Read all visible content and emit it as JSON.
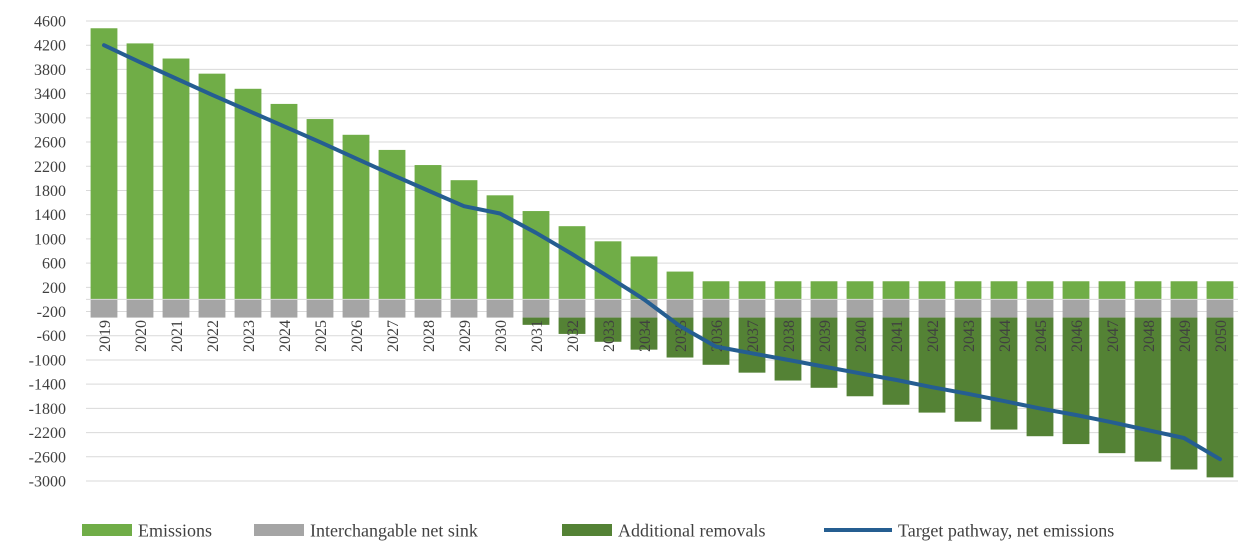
{
  "chart_data": {
    "type": "bar",
    "stacked": true,
    "categories": [
      "2019",
      "2020",
      "2021",
      "2022",
      "2023",
      "2024",
      "2025",
      "2026",
      "2027",
      "2028",
      "2029",
      "2030",
      "2031",
      "2032",
      "2033",
      "2034",
      "2035",
      "2036",
      "2037",
      "2038",
      "2039",
      "2040",
      "2041",
      "2042",
      "2043",
      "2044",
      "2045",
      "2046",
      "2047",
      "2048",
      "2049",
      "2050"
    ],
    "ylim": [
      -3000,
      4600
    ],
    "ytick_step": 400,
    "yticks": [
      "4600",
      "4200",
      "3800",
      "3400",
      "3000",
      "2600",
      "2200",
      "1800",
      "1400",
      "1000",
      "600",
      "200",
      "-200",
      "-600",
      "-1000",
      "-1400",
      "-1800",
      "-2200",
      "-2600",
      "-3000"
    ],
    "grid": true,
    "legend_position": "bottom",
    "series": [
      {
        "name": "Emissions",
        "kind": "bar",
        "color": "#70AD47",
        "values": [
          4480,
          4230,
          3980,
          3730,
          3480,
          3230,
          2980,
          2720,
          2470,
          2220,
          1970,
          1720,
          1460,
          1210,
          960,
          710,
          460,
          300,
          300,
          300,
          300,
          300,
          300,
          300,
          300,
          300,
          300,
          300,
          300,
          300,
          300,
          300
        ]
      },
      {
        "name": "Interchangable net sink",
        "kind": "bar",
        "color": "#A5A5A5",
        "values": [
          -300,
          -300,
          -300,
          -300,
          -300,
          -300,
          -300,
          -300,
          -300,
          -300,
          -300,
          -300,
          -300,
          -300,
          -300,
          -300,
          -300,
          -300,
          -300,
          -300,
          -300,
          -300,
          -300,
          -300,
          -300,
          -300,
          -300,
          -300,
          -300,
          -300,
          -300,
          -300
        ]
      },
      {
        "name": "Additional removals",
        "kind": "bar",
        "color": "#548235",
        "values": [
          0,
          0,
          0,
          0,
          0,
          0,
          0,
          0,
          0,
          0,
          0,
          0,
          -120,
          -270,
          -400,
          -530,
          -660,
          -780,
          -910,
          -1040,
          -1160,
          -1300,
          -1440,
          -1570,
          -1720,
          -1850,
          -1960,
          -2090,
          -2240,
          -2380,
          -2510,
          -2640
        ]
      },
      {
        "name": "Target pathway, net emissions",
        "kind": "line",
        "color": "#255E91",
        "values": [
          4200,
          3920,
          3650,
          3380,
          3120,
          2860,
          2600,
          2330,
          2060,
          1800,
          1540,
          1420,
          1100,
          750,
          380,
          0,
          -440,
          -780,
          -890,
          -1000,
          -1110,
          -1220,
          -1330,
          -1450,
          -1560,
          -1680,
          -1800,
          -1910,
          -2030,
          -2160,
          -2290,
          -2640
        ]
      }
    ]
  }
}
